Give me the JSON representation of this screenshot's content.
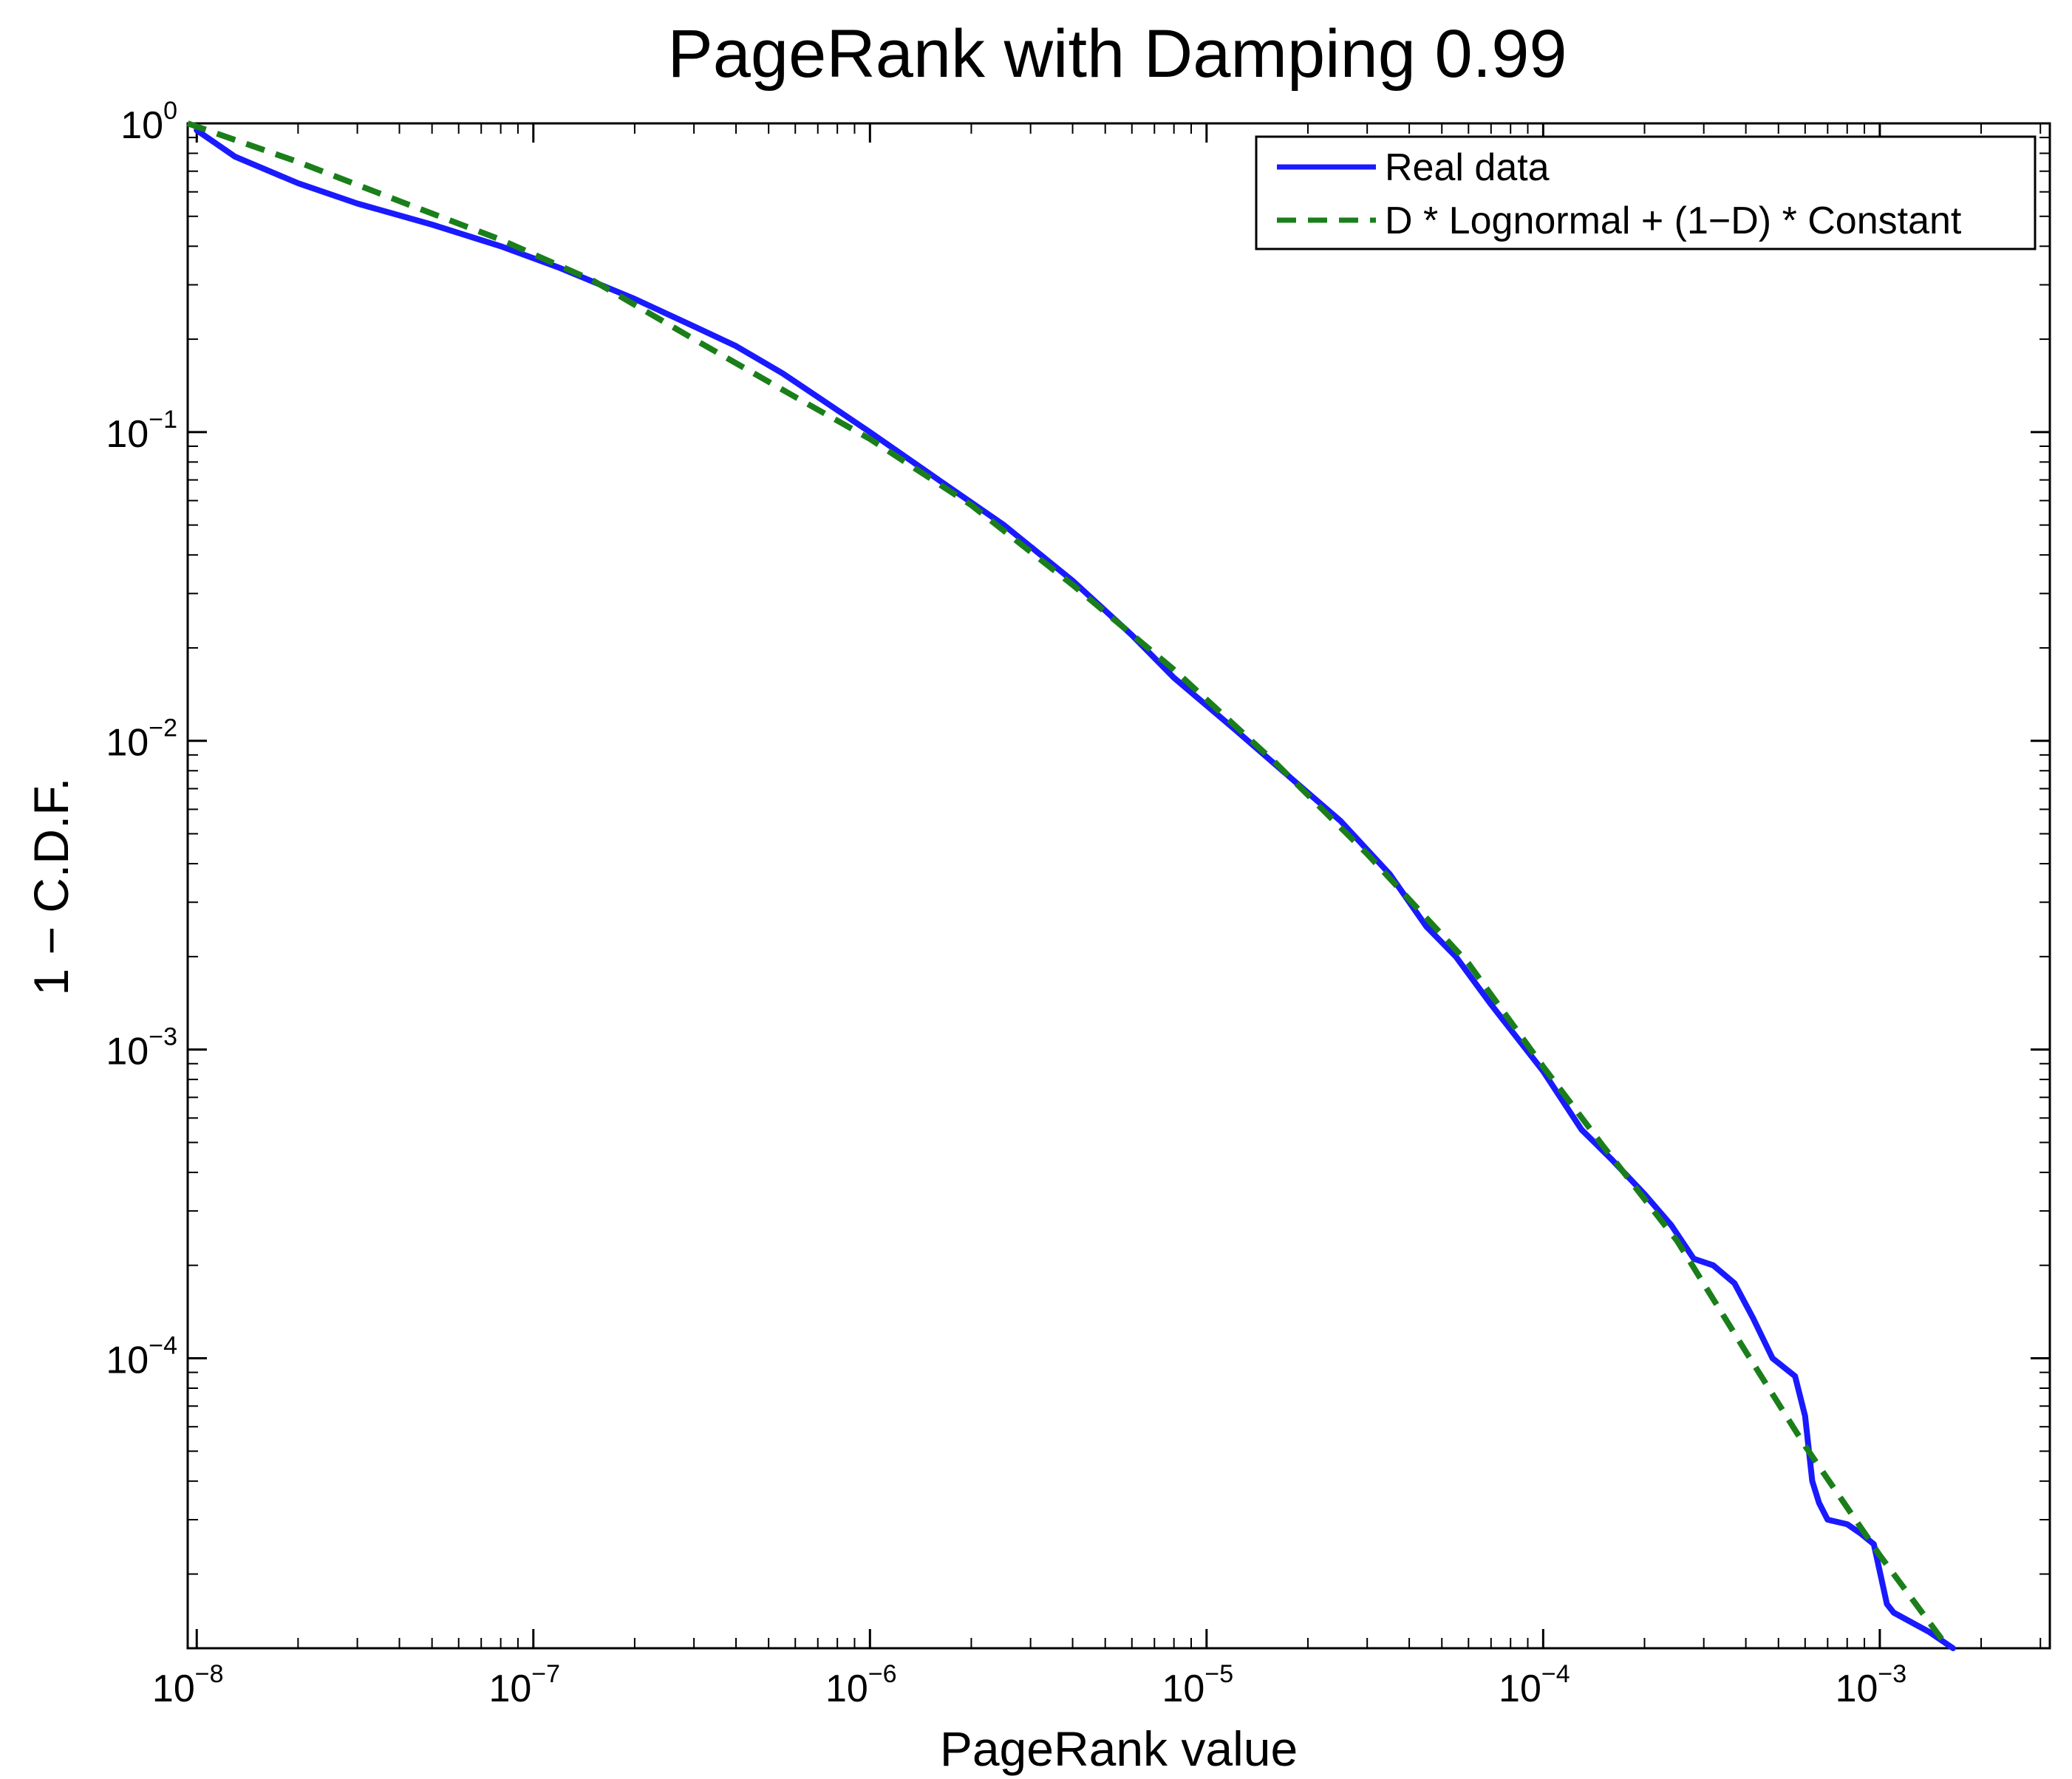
{
  "colors": {
    "real": "#1a1aff",
    "fit": "#1a7f1a",
    "axis": "#000000"
  },
  "chart_data": {
    "type": "line",
    "title": "PageRank with Damping 0.99",
    "xlabel": "PageRank value",
    "ylabel": "1 − C.D.F.",
    "x_scale": "log",
    "y_scale": "log",
    "xlim": [
      9.4e-09,
      0.0032
    ],
    "ylim": [
      1.15e-05,
      1
    ],
    "grid": false,
    "legend_position": "top-right",
    "x_ticks": [
      {
        "value": 1e-08,
        "base": "10",
        "exp": "−8"
      },
      {
        "value": 1e-07,
        "base": "10",
        "exp": "−7"
      },
      {
        "value": 1e-06,
        "base": "10",
        "exp": "−6"
      },
      {
        "value": 1e-05,
        "base": "10",
        "exp": "−5"
      },
      {
        "value": 0.0001,
        "base": "10",
        "exp": "−4"
      },
      {
        "value": 0.001,
        "base": "10",
        "exp": "−3"
      }
    ],
    "y_ticks": [
      {
        "value": 1,
        "base": "10",
        "exp": "0"
      },
      {
        "value": 0.1,
        "base": "10",
        "exp": "−1"
      },
      {
        "value": 0.01,
        "base": "10",
        "exp": "−2"
      },
      {
        "value": 0.001,
        "base": "10",
        "exp": "−3"
      },
      {
        "value": 0.0001,
        "base": "10",
        "exp": "−4"
      }
    ],
    "series": [
      {
        "name": "Real data",
        "style": "solid",
        "x": [
          1e-08,
          1.3e-08,
          2e-08,
          3e-08,
          5e-08,
          8e-08,
          1.2e-07,
          2e-07,
          3e-07,
          4e-07,
          5.5e-07,
          7e-07,
          1e-06,
          1.6e-06,
          2.5e-06,
          4e-06,
          6e-06,
          8e-06,
          1.2e-05,
          1.8e-05,
          2.5e-05,
          3.5e-05,
          4.5e-05,
          5.5e-05,
          7e-05,
          0.0001,
          0.00013,
          0.00016,
          0.0002,
          0.00024,
          0.00028,
          0.00032,
          0.00037,
          0.00042,
          0.00048,
          0.00056,
          0.0006,
          0.00063,
          0.00066,
          0.0007,
          0.0008,
          0.00088,
          0.00096,
          0.00105,
          0.0011,
          0.0014,
          0.00165
        ],
        "y": [
          0.95,
          0.78,
          0.64,
          0.55,
          0.47,
          0.4,
          0.34,
          0.27,
          0.22,
          0.19,
          0.155,
          0.13,
          0.1,
          0.07,
          0.05,
          0.033,
          0.022,
          0.016,
          0.011,
          0.0075,
          0.0055,
          0.0037,
          0.0025,
          0.002,
          0.0014,
          0.00085,
          0.00055,
          0.00044,
          0.00034,
          0.00027,
          0.00021,
          0.0002,
          0.000175,
          0.000135,
          0.0001,
          8.75e-05,
          6.5e-05,
          4e-05,
          3.4e-05,
          3e-05,
          2.9e-05,
          2.7e-05,
          2.5e-05,
          1.6e-05,
          1.5e-05,
          1.3e-05,
          1.15e-05
        ]
      },
      {
        "name": "D * Lognormal + (1−D) * Constant",
        "style": "dashed",
        "x": [
          9.4e-09,
          2e-08,
          4e-08,
          8e-08,
          1.5e-07,
          3e-07,
          6e-07,
          1e-06,
          2e-06,
          4e-06,
          8e-06,
          1.6e-05,
          3e-05,
          6e-05,
          0.0001,
          0.00015,
          0.00025,
          0.0004,
          0.0006,
          0.001,
          0.0016
        ],
        "y": [
          1,
          0.75,
          0.56,
          0.42,
          0.31,
          0.2,
          0.13,
          0.095,
          0.058,
          0.032,
          0.017,
          0.0085,
          0.0043,
          0.0019,
          0.00088,
          0.00049,
          0.00024,
          0.000105,
          5.2e-05,
          2.3e-05,
          1.15e-05
        ]
      }
    ]
  }
}
